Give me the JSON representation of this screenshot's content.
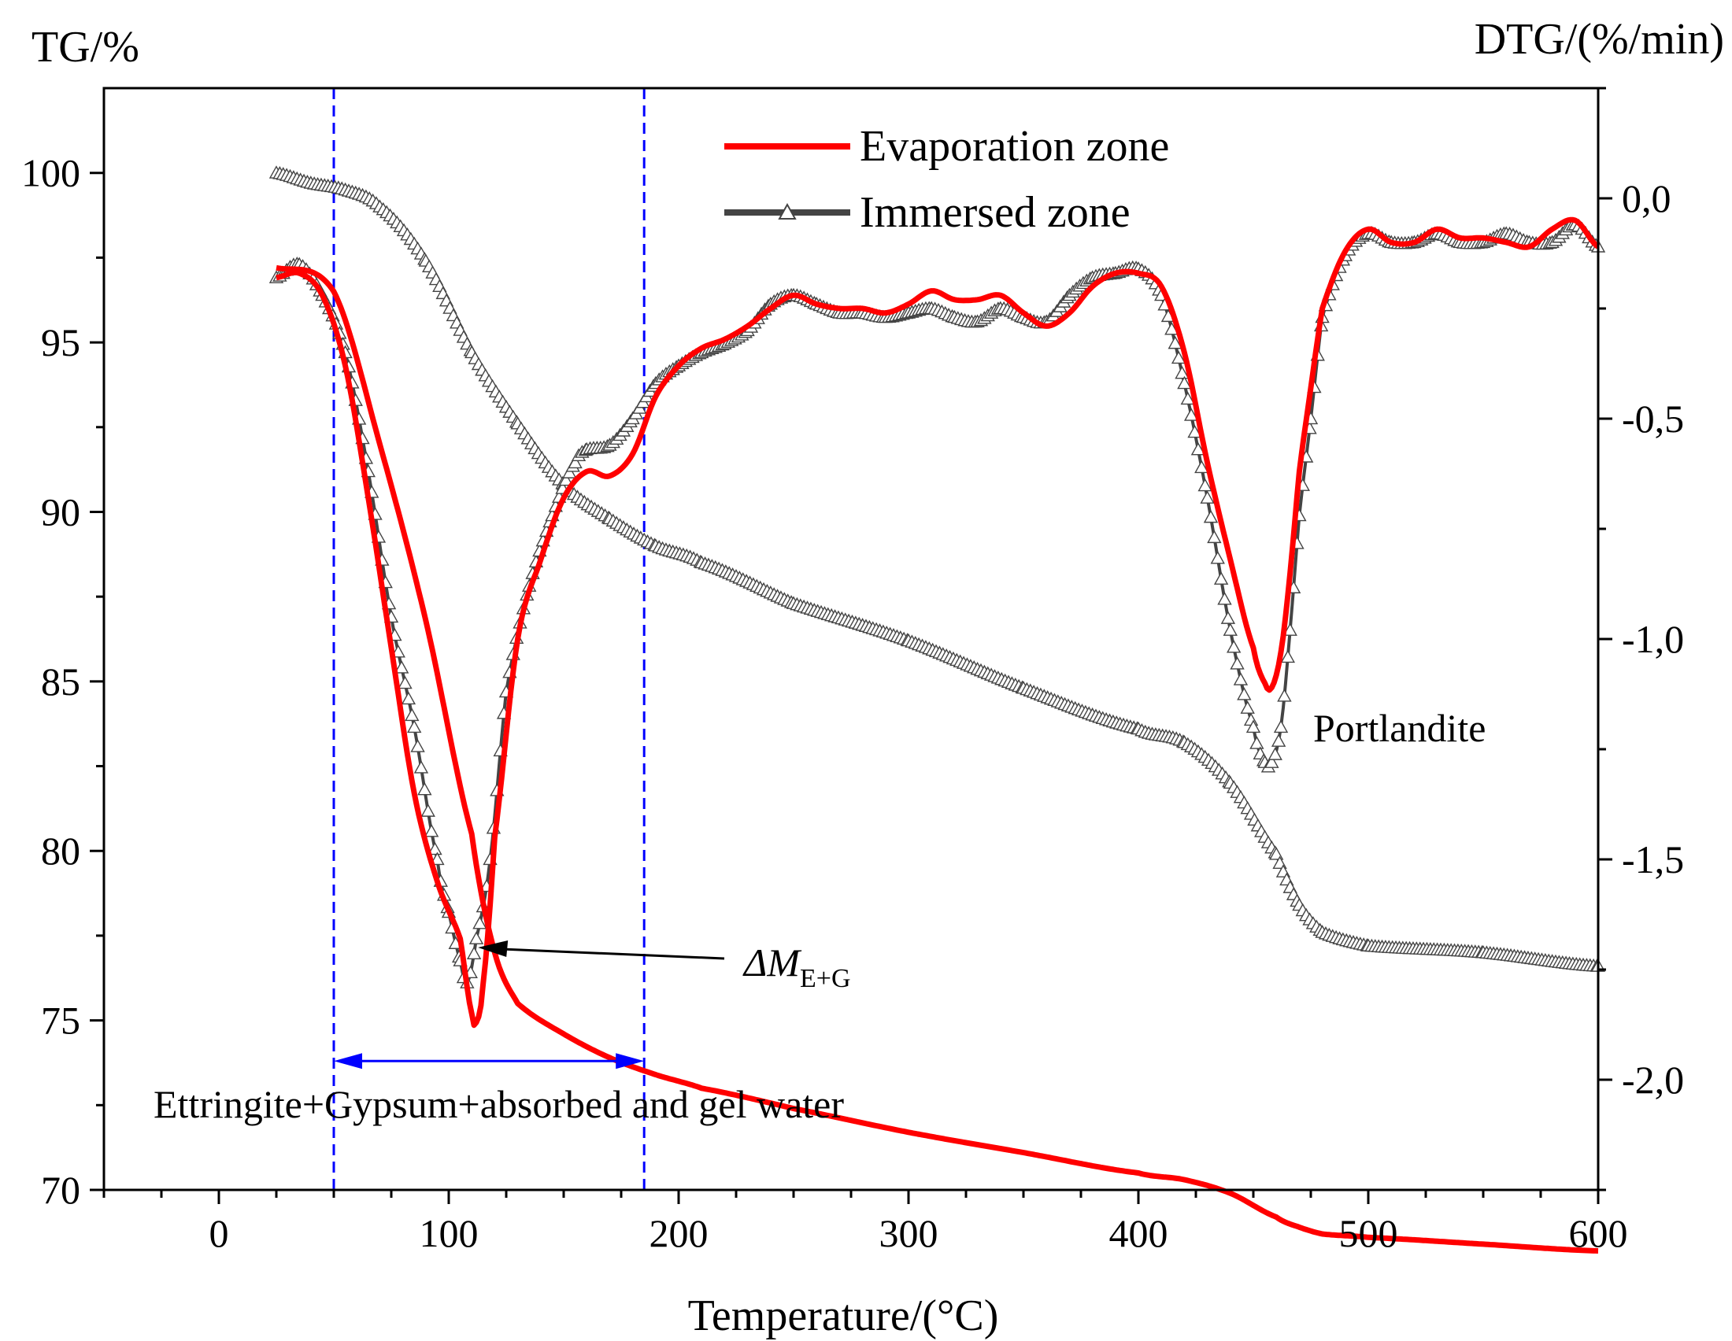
{
  "colors": {
    "evaporation": "#ff0000",
    "immersed": "#444444",
    "marker_fill": "#ffffff",
    "guide": "#0000ff",
    "axis": "#000000"
  },
  "chart_data": {
    "type": "line",
    "title": "",
    "xlabel": "Temperature/(°C)",
    "ylabel_left": "TG/%",
    "ylabel_right": "DTG/(%/min)",
    "xlim": [
      -50,
      600
    ],
    "ylim_left": [
      70,
      102.5
    ],
    "ylim_right": [
      -2.25,
      0.25
    ],
    "x_ticks": [
      0,
      100,
      200,
      300,
      400,
      500,
      600
    ],
    "x_tick_labels": [
      "0",
      "100",
      "200",
      "300",
      "400",
      "500",
      "600"
    ],
    "y_left_ticks": [
      70,
      75,
      80,
      85,
      90,
      95,
      100
    ],
    "y_left_tick_labels": [
      "70",
      "75",
      "80",
      "85",
      "90",
      "95",
      "100"
    ],
    "y_right_ticks": [
      0,
      -0.5,
      -1.0,
      -1.5,
      -2.0
    ],
    "y_right_tick_labels": [
      "0,0",
      "-0,5",
      "-1,0",
      "-1,5",
      "-2,0"
    ],
    "legend": {
      "position": "top-center",
      "entries": [
        "Evaporation zone",
        "Immersed zone"
      ]
    },
    "series": [
      {
        "name": "Evaporation zone",
        "kind": "TG",
        "axis": "left",
        "x": [
          25,
          50,
          70,
          90,
          110,
          120,
          130,
          150,
          170,
          190,
          210,
          250,
          300,
          350,
          400,
          420,
          440,
          460,
          470,
          480,
          500,
          550,
          600
        ],
        "y": [
          97.2,
          96.5,
          92.0,
          86.8,
          80.5,
          77.0,
          75.5,
          74.6,
          73.9,
          73.4,
          73.0,
          72.4,
          71.7,
          71.1,
          70.5,
          70.3,
          69.9,
          69.2,
          68.9,
          68.7,
          68.6,
          68.4,
          68.2
        ]
      },
      {
        "name": "Immersed zone",
        "kind": "TG",
        "axis": "left",
        "x": [
          25,
          40,
          55,
          70,
          90,
          110,
          130,
          150,
          170,
          190,
          210,
          250,
          300,
          350,
          400,
          420,
          440,
          460,
          470,
          480,
          500,
          550,
          600
        ],
        "y": [
          100.0,
          99.7,
          99.5,
          99.0,
          97.4,
          94.7,
          92.6,
          90.8,
          89.8,
          89.0,
          88.5,
          87.3,
          86.2,
          84.8,
          83.6,
          83.2,
          82.0,
          79.9,
          78.4,
          77.6,
          77.2,
          77.0,
          76.6
        ]
      },
      {
        "name": "Evaporation zone",
        "kind": "DTG",
        "axis": "right",
        "x": [
          25,
          35,
          45,
          55,
          65,
          75,
          85,
          95,
          105,
          110,
          112,
          115,
          120,
          130,
          140,
          150,
          160,
          170,
          180,
          190,
          200,
          210,
          220,
          230,
          240,
          250,
          260,
          270,
          280,
          290,
          300,
          310,
          320,
          330,
          340,
          350,
          360,
          370,
          380,
          390,
          400,
          410,
          420,
          430,
          440,
          450,
          455,
          458,
          462,
          466,
          470,
          475,
          480,
          490,
          500,
          510,
          520,
          530,
          540,
          550,
          560,
          570,
          580,
          590,
          600
        ],
        "y": [
          -0.18,
          -0.17,
          -0.22,
          -0.38,
          -0.68,
          -1.02,
          -1.35,
          -1.55,
          -1.68,
          -1.85,
          -1.87,
          -1.78,
          -1.45,
          -1.0,
          -0.82,
          -0.68,
          -0.62,
          -0.63,
          -0.58,
          -0.45,
          -0.38,
          -0.34,
          -0.32,
          -0.29,
          -0.25,
          -0.22,
          -0.24,
          -0.25,
          -0.25,
          -0.26,
          -0.24,
          -0.21,
          -0.23,
          -0.23,
          -0.22,
          -0.26,
          -0.29,
          -0.26,
          -0.2,
          -0.17,
          -0.17,
          -0.2,
          -0.35,
          -0.6,
          -0.82,
          -1.02,
          -1.1,
          -1.11,
          -1.03,
          -0.85,
          -0.62,
          -0.43,
          -0.25,
          -0.12,
          -0.07,
          -0.1,
          -0.1,
          -0.07,
          -0.09,
          -0.09,
          -0.1,
          -0.11,
          -0.07,
          -0.05,
          -0.11
        ]
      },
      {
        "name": "Immersed zone",
        "kind": "DTG",
        "axis": "right",
        "x": [
          25,
          35,
          45,
          55,
          65,
          75,
          85,
          95,
          100,
          105,
          108,
          112,
          118,
          125,
          135,
          145,
          155,
          160,
          170,
          180,
          190,
          200,
          210,
          220,
          230,
          240,
          250,
          260,
          270,
          280,
          290,
          300,
          310,
          320,
          330,
          340,
          350,
          360,
          370,
          380,
          390,
          400,
          410,
          420,
          430,
          440,
          450,
          455,
          458,
          462,
          466,
          470,
          475,
          480,
          490,
          500,
          510,
          520,
          530,
          540,
          550,
          560,
          570,
          580,
          590,
          600
        ],
        "y": [
          -0.18,
          -0.15,
          -0.22,
          -0.35,
          -0.62,
          -0.95,
          -1.2,
          -1.5,
          -1.62,
          -1.73,
          -1.78,
          -1.68,
          -1.5,
          -1.12,
          -0.88,
          -0.72,
          -0.6,
          -0.57,
          -0.56,
          -0.5,
          -0.42,
          -0.38,
          -0.35,
          -0.33,
          -0.3,
          -0.24,
          -0.22,
          -0.24,
          -0.26,
          -0.26,
          -0.27,
          -0.26,
          -0.25,
          -0.27,
          -0.28,
          -0.25,
          -0.27,
          -0.28,
          -0.22,
          -0.18,
          -0.17,
          -0.16,
          -0.22,
          -0.42,
          -0.68,
          -0.98,
          -1.2,
          -1.28,
          -1.28,
          -1.2,
          -0.98,
          -0.72,
          -0.5,
          -0.27,
          -0.13,
          -0.08,
          -0.1,
          -0.1,
          -0.08,
          -0.1,
          -0.1,
          -0.08,
          -0.1,
          -0.1,
          -0.06,
          -0.11
        ]
      }
    ],
    "annotations": {
      "delta_m_base": "ΔM",
      "delta_m_sub": "E+G",
      "portlandite": "Portlandite",
      "range_label": "Ettringite+Gypsum+absorbed and gel water",
      "guide_lines_x": [
        50,
        185
      ],
      "range_arrow_x": [
        50,
        185
      ],
      "range_arrow_y_left": 73.8,
      "delta_arrow_target": [
        110,
        -1.7
      ],
      "delta_arrow_label_anchor": [
        225,
        -1.75
      ]
    }
  }
}
